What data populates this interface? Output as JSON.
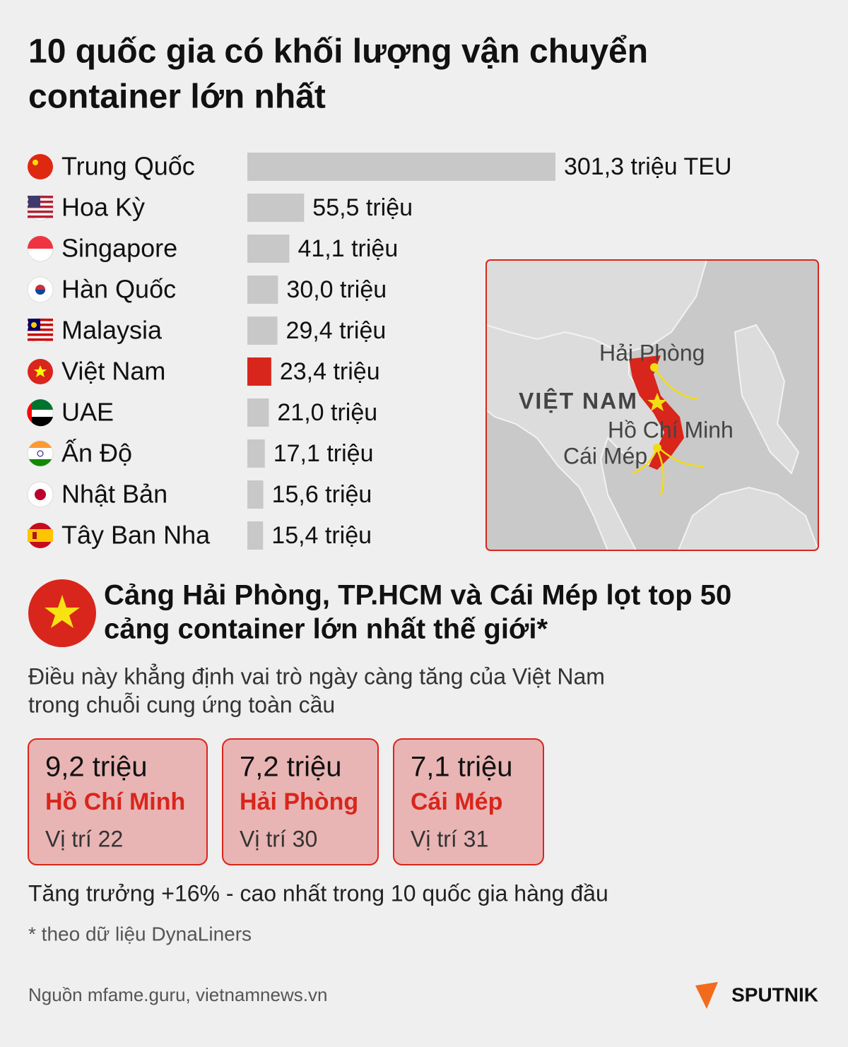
{
  "chart_data": {
    "type": "bar",
    "orientation": "horizontal",
    "title": [
      "10 quốc gia có khối lượng vận chuyển",
      "container lớn nhất"
    ],
    "categories": [
      "Trung Quốc",
      "Hoa Kỳ",
      "Singapore",
      "Hàn Quốc",
      "Malaysia",
      "Việt Nam",
      "UAE",
      "Ấn Độ",
      "Nhật Bản",
      "Tây Ban Nha"
    ],
    "values": [
      301.3,
      55.5,
      41.1,
      30.0,
      29.4,
      23.4,
      21.0,
      17.1,
      15.6,
      15.4
    ],
    "value_labels": [
      "301,3 triệu TEU",
      "55,5 triệu",
      "41,1 triệu",
      "30,0 triệu",
      "29,4 triệu",
      "23,4 triệu",
      "21,0 triệu",
      "17,1 triệu",
      "15,6 triệu",
      "15,4 triệu"
    ],
    "colors": [
      "#c8c8c8",
      "#c8c8c8",
      "#c8c8c8",
      "#c8c8c8",
      "#c8c8c8",
      "#d9261c",
      "#c8c8c8",
      "#c8c8c8",
      "#c8c8c8",
      "#c8c8c8"
    ]
  },
  "map": {
    "labels": [
      "Hải Phòng",
      "VIỆT NAM",
      "Hồ Chí Minh",
      "Cái Mép"
    ]
  },
  "callout": {
    "title": [
      "Cảng Hải Phòng, TP.HCM và Cái Mép lọt top 50",
      "cảng container lớn nhất thế giới*"
    ],
    "text": [
      "Điều này khẳng định vai trò ngày càng tăng của Việt Nam",
      "trong chuỗi cung ứng toàn cầu"
    ],
    "ports": [
      {
        "value": "9,2 triệu",
        "name": "Hồ Chí Minh",
        "rank": "Vị trí 22"
      },
      {
        "value": "7,2 triệu",
        "name": "Hải Phòng",
        "rank": "Vị trí 30"
      },
      {
        "value": "7,1 triệu",
        "name": "Cái Mép",
        "rank": "Vị trí 31"
      }
    ],
    "growth": "Tăng trưởng +16% - cao nhất trong 10 quốc gia hàng đầu",
    "footnote": "* theo dữ liệu DynaLiners"
  },
  "footer": {
    "source": "Nguồn mfame.guru, vietnamnews.vn",
    "logo": "SPUTNIK"
  }
}
